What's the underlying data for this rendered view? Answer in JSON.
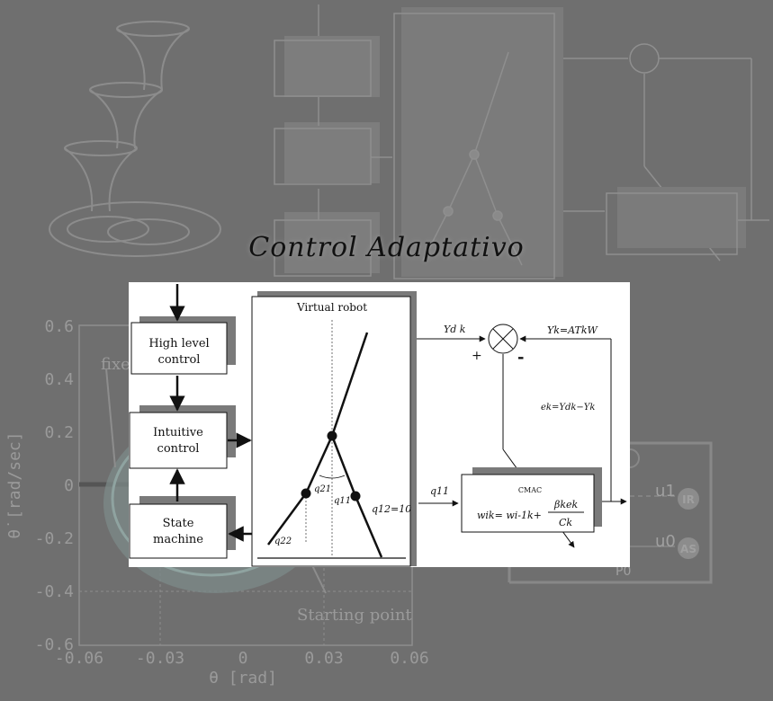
{
  "title": "Control Adaptativo",
  "colors": {
    "background": "#6f6f6f",
    "panel": "#ffffff",
    "ink": "#111111",
    "shadow": "#7a7a7a"
  },
  "diagram": {
    "blocks": {
      "high_level": {
        "line1": "High level",
        "line2": "control"
      },
      "intuitive": {
        "line1": "Intuitive",
        "line2": "control"
      },
      "state": {
        "line1": "State",
        "line2": "machine"
      }
    },
    "virtual_robot": {
      "label": "Virtual robot",
      "q21": "q21",
      "q11": "q11",
      "q22": "q22",
      "q12": "q12=10"
    },
    "signals": {
      "y_desired": "Yd k",
      "y_output": "Yk=ATkW",
      "plus": "+",
      "minus": "-",
      "error": "ek=Ydk−Yk",
      "q11_input": "q11"
    },
    "cmac": {
      "label": "CMAC",
      "update": "wik= wi-1k+",
      "fraction_num": "βkek",
      "fraction_den": "Ck"
    }
  },
  "background_plot": {
    "ylabel": "θ̇ [rad/sec]",
    "xlabel": "θ [rad]",
    "yticks": [
      "0.6",
      "0.4",
      "0.2",
      "0",
      "-0.2",
      "-0.4",
      "-0.6"
    ],
    "xticks": [
      "-0.06",
      "-0.03",
      "0",
      "0.03",
      "0.06"
    ],
    "fixed_label": "fixe",
    "starting_label": "Starting point"
  },
  "background_circuit": {
    "u1": "u1",
    "u0": "u0",
    "p0": "P0",
    "ir": "IR",
    "as": "AS"
  }
}
